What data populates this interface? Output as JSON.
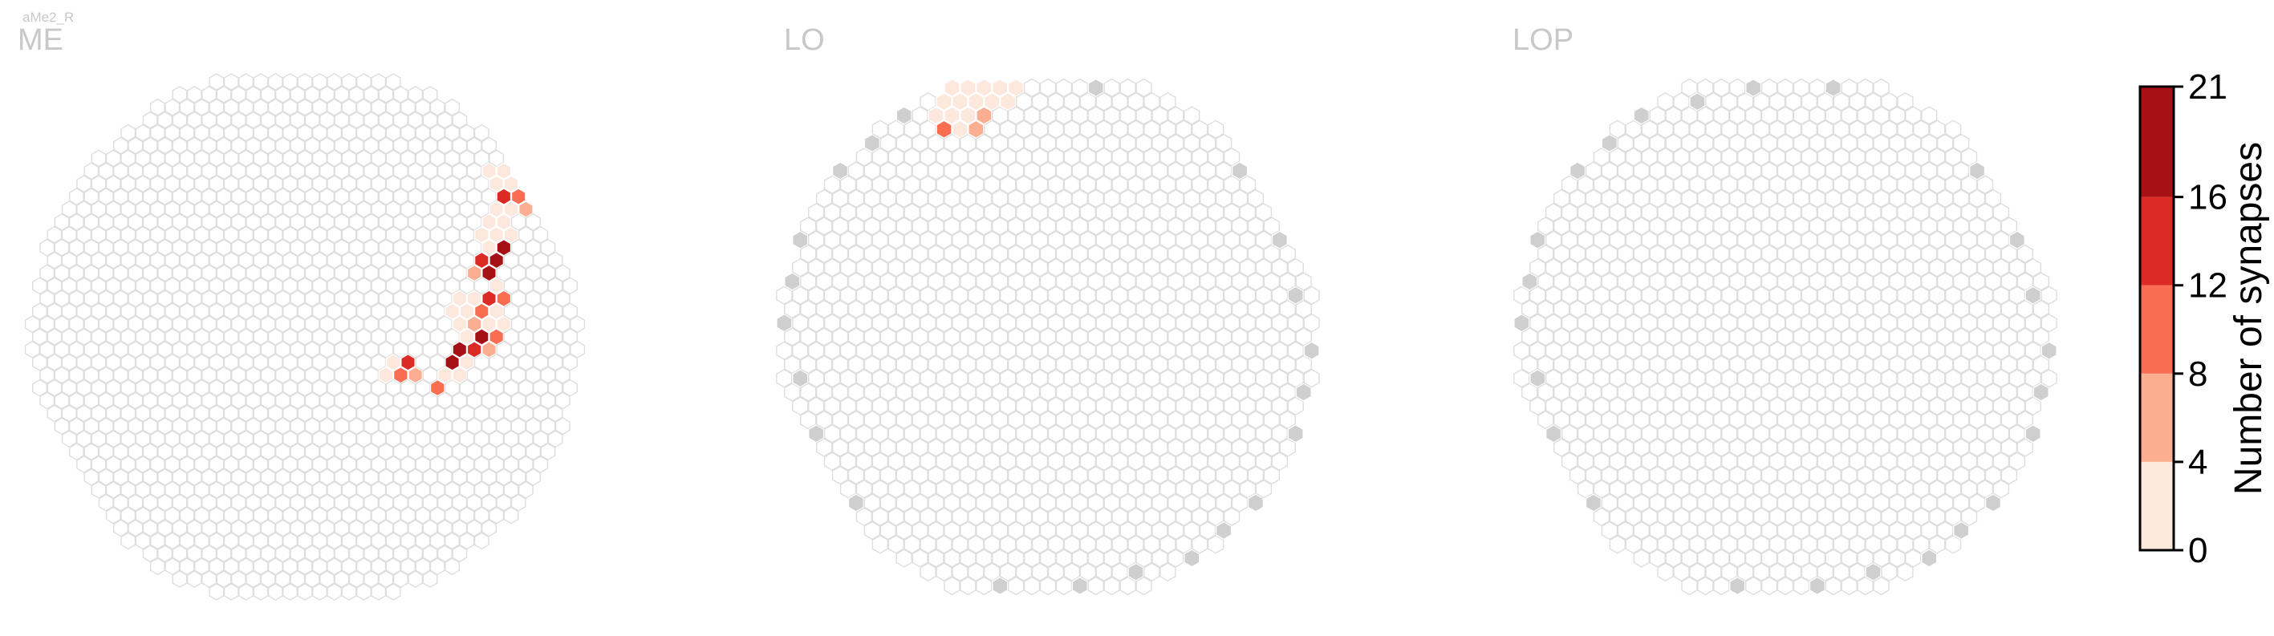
{
  "cell_type": "aMe2_R",
  "chart_data": {
    "type": "heatmap",
    "description_unit": "hexagonal column grid per optic-lobe neuropil",
    "panels": [
      {
        "title": "ME",
        "grid_radius": 20,
        "colored": [
          {
            "q": 4,
            "r": 3,
            "v": 2
          },
          {
            "q": 5,
            "r": 2,
            "v": 2
          },
          {
            "q": 5,
            "r": 3,
            "v": 9
          },
          {
            "q": 6,
            "r": 2,
            "v": 14
          },
          {
            "q": 6,
            "r": 3,
            "v": 6
          },
          {
            "q": 8,
            "r": 3,
            "v": 3
          },
          {
            "q": 7,
            "r": 4,
            "v": 11
          },
          {
            "q": 9,
            "r": 2,
            "v": 18
          },
          {
            "q": 9,
            "r": 3,
            "v": 2
          },
          {
            "q": 10,
            "r": 1,
            "v": 20
          },
          {
            "q": 10,
            "r": 2,
            "v": 2
          },
          {
            "q": 11,
            "r": 1,
            "v": 14
          },
          {
            "q": 12,
            "r": 0,
            "v": 17
          },
          {
            "q": 12,
            "r": 1,
            "v": 5
          },
          {
            "q": 13,
            "r": -1,
            "v": 3
          },
          {
            "q": 13,
            "r": 0,
            "v": 12
          },
          {
            "q": 14,
            "r": -2,
            "v": 4
          },
          {
            "q": 14,
            "r": -1,
            "v": 2
          },
          {
            "q": 11,
            "r": -2,
            "v": 4
          },
          {
            "q": 11,
            "r": -1,
            "v": 2
          },
          {
            "q": 11,
            "r": 0,
            "v": 2
          },
          {
            "q": 12,
            "r": -2,
            "v": 2
          },
          {
            "q": 12,
            "r": -3,
            "v": 3
          },
          {
            "q": 12,
            "r": -1,
            "v": 6
          },
          {
            "q": 13,
            "r": -3,
            "v": 2
          },
          {
            "q": 13,
            "r": -2,
            "v": 9
          },
          {
            "q": 14,
            "r": -3,
            "v": 13
          },
          {
            "q": 15,
            "r": -4,
            "v": 3
          },
          {
            "q": 15,
            "r": -3,
            "v": 10
          },
          {
            "q": 14,
            "r": -5,
            "v": 5
          },
          {
            "q": 15,
            "r": -5,
            "v": 19
          },
          {
            "q": 15,
            "r": -6,
            "v": 13
          },
          {
            "q": 16,
            "r": -6,
            "v": 17
          },
          {
            "q": 16,
            "r": -7,
            "v": 3
          },
          {
            "q": 17,
            "r": -7,
            "v": 20
          },
          {
            "q": 16,
            "r": -8,
            "v": 2
          },
          {
            "q": 17,
            "r": -8,
            "v": 2
          },
          {
            "q": 18,
            "r": -8,
            "v": 2
          },
          {
            "q": 17,
            "r": -9,
            "v": 3
          },
          {
            "q": 18,
            "r": -9,
            "v": 2
          },
          {
            "q": 18,
            "r": -10,
            "v": 4
          },
          {
            "q": 19,
            "r": -11,
            "v": 15
          },
          {
            "q": 19,
            "r": -10,
            "v": 3
          },
          {
            "q": 20,
            "r": -10,
            "v": 6
          },
          {
            "q": 20,
            "r": -11,
            "v": 11
          },
          {
            "q": 20,
            "r": -12,
            "v": 2
          },
          {
            "q": 19,
            "r": -12,
            "v": 2
          },
          {
            "q": 20,
            "r": -13,
            "v": 3
          },
          {
            "q": 19,
            "r": -13,
            "v": 2
          }
        ]
      },
      {
        "title": "LO",
        "grid_radius": 18,
        "colored": [
          {
            "q": 4,
            "r": -22,
            "v": 2
          },
          {
            "q": 5,
            "r": -22,
            "v": 2
          },
          {
            "q": 6,
            "r": -22,
            "v": 6
          },
          {
            "q": 4,
            "r": -21,
            "v": 2
          },
          {
            "q": 5,
            "r": -21,
            "v": 2
          },
          {
            "q": 6,
            "r": -21,
            "v": 2
          },
          {
            "q": 7,
            "r": -22,
            "v": 2
          },
          {
            "q": 2,
            "r": -18,
            "v": 2
          },
          {
            "q": 3,
            "r": -18,
            "v": 2
          },
          {
            "q": 4,
            "r": -19,
            "v": 2
          },
          {
            "q": 5,
            "r": -19,
            "v": 2
          },
          {
            "q": 2,
            "r": -17,
            "v": 2
          },
          {
            "q": 3,
            "r": -17,
            "v": 2
          },
          {
            "q": 4,
            "r": -18,
            "v": 2
          },
          {
            "q": 6,
            "r": -20,
            "v": 2
          },
          {
            "q": 7,
            "r": -20,
            "v": 6
          },
          {
            "q": 8,
            "r": -23,
            "v": 11
          },
          {
            "q": 8,
            "r": -22,
            "v": 9
          },
          {
            "q": 8,
            "r": -21,
            "v": 2
          },
          {
            "q": 9,
            "r": -23,
            "v": 2
          },
          {
            "q": 1,
            "r": -16,
            "v": 2
          },
          {
            "q": 2,
            "r": -16,
            "v": 2
          },
          {
            "q": 3,
            "r": -16,
            "v": 2
          },
          {
            "q": 4,
            "r": -17,
            "v": 2
          },
          {
            "q": 5,
            "r": -18,
            "v": 3
          },
          {
            "q": 6,
            "r": -19,
            "v": 2
          },
          {
            "q": 7,
            "r": -19,
            "v": 2
          },
          {
            "q": 1,
            "r": -15,
            "v": 9
          },
          {
            "q": 2,
            "r": -15,
            "v": 2
          },
          {
            "q": 3,
            "r": -15,
            "v": 7
          },
          {
            "q": 4,
            "r": -16,
            "v": 7
          },
          {
            "q": 5,
            "r": -17,
            "v": 2
          },
          {
            "q": 6,
            "r": -18,
            "v": 2
          },
          {
            "q": 7,
            "r": -18,
            "v": 2
          },
          {
            "q": 6,
            "r": -17,
            "v": 2
          },
          {
            "q": 8,
            "r": -19,
            "v": 2
          }
        ]
      },
      {
        "title": "LOP",
        "grid_radius": 18,
        "colored": []
      }
    ],
    "colorbar": {
      "label": "Number of synapses",
      "ticks": [
        0,
        4,
        8,
        12,
        16,
        21
      ],
      "ylim": [
        0,
        21
      ],
      "bins": [
        {
          "min": 0,
          "max": 4,
          "color": "#fde8de"
        },
        {
          "min": 4,
          "max": 8,
          "color": "#fbae92"
        },
        {
          "min": 8,
          "max": 12,
          "color": "#f96d50"
        },
        {
          "min": 12,
          "max": 16,
          "color": "#dc2b25"
        },
        {
          "min": 16,
          "max": 21,
          "color": "#a61116"
        }
      ]
    },
    "colors": {
      "empty_hex_stroke": "#dedede",
      "empty_hex_fill": "#ffffff",
      "boundary_hex_fill": "#cfcfcf",
      "title_color": "#c8c8c8"
    }
  }
}
